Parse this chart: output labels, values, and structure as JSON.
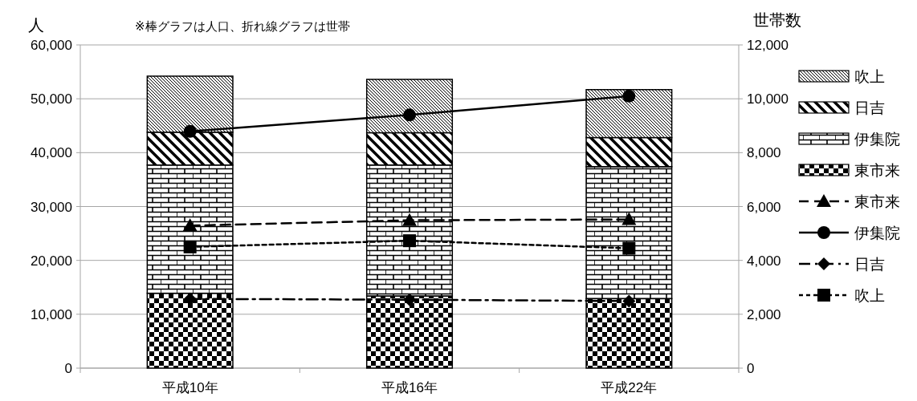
{
  "chart_data": {
    "type": "bar",
    "stacked": true,
    "ylabel": "人",
    "y2label": "世帯数",
    "annotations": [
      "※棒グラフは人口、折れ線グラフは世帯"
    ],
    "categories": [
      "平成10年",
      "平成16年",
      "平成22年"
    ],
    "series": [
      {
        "name": "東市来",
        "color": "#000000",
        "values": [
          13900,
          13400,
          12900
        ]
      },
      {
        "name": "伊集院",
        "color": "#000000",
        "values": [
          23800,
          24300,
          24500
        ]
      },
      {
        "name": "日吉",
        "color": "#000000",
        "values": [
          6100,
          6000,
          5400
        ]
      },
      {
        "name": "吹上",
        "color": "#000000",
        "values": [
          10400,
          9900,
          8900
        ]
      },
      {
        "name": "東市来",
        "type": "line",
        "axis": "y2",
        "color": "#000000",
        "marker": "triangle",
        "line_style": "dashed",
        "values": [
          5290,
          5490,
          5520
        ]
      },
      {
        "name": "伊集院",
        "type": "line",
        "axis": "y2",
        "color": "#000000",
        "marker": "circle",
        "line_style": "solid",
        "values": [
          8790,
          9400,
          10100
        ]
      },
      {
        "name": "日吉",
        "type": "line",
        "axis": "y2",
        "color": "#000000",
        "marker": "diamond",
        "line_style": "dashdot",
        "values": [
          2570,
          2540,
          2490
        ]
      },
      {
        "name": "吹上",
        "type": "line",
        "axis": "y2",
        "color": "#000000",
        "marker": "square",
        "line_style": "dotted",
        "values": [
          4500,
          4730,
          4450
        ]
      }
    ],
    "ylim": [
      0,
      60000
    ],
    "yticks": [
      {
        "value": 0,
        "label": "0"
      },
      {
        "value": 10000,
        "label": "10,000"
      },
      {
        "value": 20000,
        "label": "20,000"
      },
      {
        "value": 30000,
        "label": "30,000"
      },
      {
        "value": 40000,
        "label": "40,000"
      },
      {
        "value": 50000,
        "label": "50,000"
      },
      {
        "value": 60000,
        "label": "60,000"
      }
    ],
    "y2lim": [
      0,
      12000
    ],
    "y2ticks": [
      {
        "value": 0,
        "label": "0"
      },
      {
        "value": 2000,
        "label": "2,000"
      },
      {
        "value": 4000,
        "label": "4,000"
      },
      {
        "value": 6000,
        "label": "6,000"
      },
      {
        "value": 8000,
        "label": "8,000"
      },
      {
        "value": 10000,
        "label": "10,000"
      },
      {
        "value": 12000,
        "label": "12,000"
      }
    ],
    "grid": "y",
    "legend": "right"
  }
}
